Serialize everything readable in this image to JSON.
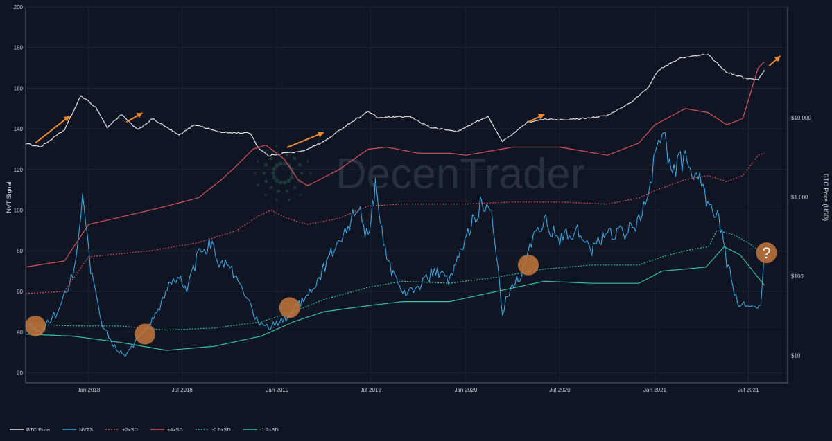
{
  "chart_data": {
    "type": "line",
    "watermark": "DecenTrader",
    "xlabels": [
      "Jan 2018",
      "Jul 2018",
      "Jan 2019",
      "Jul 2019",
      "Jan 2020",
      "Jul 2020",
      "Jan 2021",
      "Jul 2021"
    ],
    "y_left": {
      "title": "NVT Signal",
      "ticks": [
        "20",
        "40",
        "60",
        "80",
        "100",
        "120",
        "140",
        "160",
        "180",
        "200"
      ],
      "ylim": [
        15,
        200
      ]
    },
    "y_right": {
      "title": "BTC Price (USD)",
      "scale": "log",
      "ticks": [
        "$10",
        "$100",
        "$1,000",
        "$10,000"
      ]
    },
    "x_range": [
      "2017-09-01",
      "2021-09-15"
    ],
    "legend": {
      "position": "bottom-left",
      "items": [
        {
          "name": "BTC Price",
          "color": "#e6e6e6",
          "dash": "solid"
        },
        {
          "name": "NVTS",
          "color": "#3aa6e0",
          "dash": "solid"
        },
        {
          "name": "+2xSD",
          "color": "#d9525e",
          "dash": "dotted"
        },
        {
          "name": "+4xSD",
          "color": "#d9525e",
          "dash": "solid"
        },
        {
          "name": "-0.5xSD",
          "color": "#35c2a8",
          "dash": "dotted"
        },
        {
          "name": "-1.2xSD",
          "color": "#35c2a8",
          "dash": "solid"
        }
      ]
    },
    "series": [
      {
        "name": "BTC Price",
        "axis": "right",
        "x": [
          "2017-09-01",
          "2017-10-01",
          "2017-11-15",
          "2017-12-17",
          "2018-01-15",
          "2018-02-06",
          "2018-03-05",
          "2018-04-06",
          "2018-05-05",
          "2018-06-25",
          "2018-07-25",
          "2018-09-15",
          "2018-11-10",
          "2018-11-25",
          "2018-12-15",
          "2019-01-15",
          "2019-02-15",
          "2019-04-02",
          "2019-05-15",
          "2019-06-26",
          "2019-07-15",
          "2019-09-15",
          "2019-10-25",
          "2019-12-17",
          "2020-01-15",
          "2020-02-13",
          "2020-03-12",
          "2020-04-30",
          "2020-06-01",
          "2020-07-25",
          "2020-10-01",
          "2020-11-15",
          "2020-12-17",
          "2021-01-08",
          "2021-02-21",
          "2021-04-14",
          "2021-05-19",
          "2021-06-22",
          "2021-07-20",
          "2021-08-01"
        ],
        "y": [
          4700,
          4300,
          7000,
          19000,
          13500,
          7500,
          11000,
          7000,
          9700,
          6000,
          8200,
          6500,
          6400,
          4200,
          3300,
          3600,
          3700,
          5000,
          8000,
          12000,
          10000,
          10300,
          7500,
          6700,
          8500,
          10300,
          5000,
          8800,
          9500,
          9500,
          10600,
          15500,
          23000,
          40000,
          57000,
          63000,
          38000,
          32000,
          30000,
          40000
        ]
      },
      {
        "name": "NVTS",
        "axis": "left",
        "x": [
          "2017-09-01",
          "2017-10-01",
          "2017-11-01",
          "2017-11-25",
          "2017-12-10",
          "2017-12-20",
          "2018-01-05",
          "2018-01-25",
          "2018-02-15",
          "2018-03-10",
          "2018-04-10",
          "2018-04-25",
          "2018-05-10",
          "2018-06-05",
          "2018-06-25",
          "2018-07-10",
          "2018-08-01",
          "2018-08-25",
          "2018-09-10",
          "2018-10-05",
          "2018-11-05",
          "2018-11-25",
          "2018-12-15",
          "2019-01-15",
          "2019-02-15",
          "2019-03-20",
          "2019-04-15",
          "2019-05-15",
          "2019-06-05",
          "2019-06-26",
          "2019-07-10",
          "2019-08-01",
          "2019-09-01",
          "2019-10-01",
          "2019-11-01",
          "2019-12-01",
          "2020-01-05",
          "2020-02-01",
          "2020-02-20",
          "2020-03-12",
          "2020-03-25",
          "2020-04-20",
          "2020-05-10",
          "2020-06-01",
          "2020-07-01",
          "2020-08-01",
          "2020-09-01",
          "2020-10-01",
          "2020-11-01",
          "2020-12-01",
          "2020-12-20",
          "2021-01-05",
          "2021-01-15",
          "2021-02-01",
          "2021-03-01",
          "2021-04-01",
          "2021-04-20",
          "2021-05-05",
          "2021-05-20",
          "2021-06-10",
          "2021-07-05",
          "2021-07-25",
          "2021-08-01"
        ],
        "y": [
          44,
          40,
          50,
          62,
          80,
          105,
          70,
          45,
          35,
          28,
          38,
          42,
          48,
          62,
          68,
          60,
          78,
          84,
          75,
          70,
          55,
          45,
          42,
          46,
          55,
          65,
          78,
          90,
          103,
          85,
          112,
          75,
          60,
          62,
          70,
          65,
          88,
          105,
          100,
          50,
          60,
          70,
          85,
          95,
          85,
          90,
          80,
          90,
          88,
          95,
          110,
          130,
          140,
          120,
          125,
          112,
          100,
          95,
          75,
          55,
          52,
          55,
          80
        ]
      },
      {
        "name": "+4xSD",
        "axis": "left",
        "x": [
          "2017-09-01",
          "2017-11-15",
          "2018-01-01",
          "2018-05-01",
          "2018-08-01",
          "2018-09-15",
          "2018-10-15",
          "2018-11-15",
          "2018-12-10",
          "2019-01-15",
          "2019-02-10",
          "2019-03-01",
          "2019-05-01",
          "2019-06-26",
          "2019-08-01",
          "2019-10-01",
          "2019-12-01",
          "2020-01-01",
          "2020-04-01",
          "2020-07-01",
          "2020-10-01",
          "2020-12-01",
          "2021-01-01",
          "2021-03-01",
          "2021-04-14",
          "2021-05-20",
          "2021-06-20",
          "2021-07-20",
          "2021-08-01"
        ],
        "y": [
          72,
          75,
          93,
          100,
          106,
          115,
          122,
          130,
          132,
          125,
          115,
          112,
          120,
          130,
          131,
          128,
          128,
          127,
          131,
          131,
          127,
          133,
          142,
          150,
          148,
          142,
          145,
          170,
          173
        ]
      },
      {
        "name": "+2xSD",
        "axis": "left",
        "x": [
          "2017-09-01",
          "2017-11-15",
          "2018-01-01",
          "2018-05-01",
          "2018-08-01",
          "2018-10-15",
          "2018-11-25",
          "2018-12-20",
          "2019-01-20",
          "2019-03-01",
          "2019-05-01",
          "2019-06-26",
          "2019-09-01",
          "2019-12-01",
          "2020-01-01",
          "2020-04-01",
          "2020-07-01",
          "2020-10-01",
          "2020-12-01",
          "2021-01-05",
          "2021-03-01",
          "2021-04-14",
          "2021-05-20",
          "2021-06-20",
          "2021-07-20",
          "2021-08-01"
        ],
        "y": [
          59,
          60,
          77,
          80,
          84,
          90,
          97,
          100,
          96,
          93,
          96,
          102,
          103,
          103,
          103,
          104,
          104,
          103,
          106,
          110,
          115,
          117,
          114,
          117,
          127,
          128
        ]
      },
      {
        "name": "-0.5xSD",
        "axis": "left",
        "x": [
          "2017-09-01",
          "2017-12-01",
          "2018-03-01",
          "2018-06-01",
          "2018-09-01",
          "2018-12-01",
          "2019-02-01",
          "2019-04-01",
          "2019-06-26",
          "2019-09-01",
          "2019-12-01",
          "2020-03-01",
          "2020-06-01",
          "2020-09-01",
          "2020-12-01",
          "2021-01-15",
          "2021-03-01",
          "2021-04-15",
          "2021-05-01",
          "2021-06-01",
          "2021-07-01",
          "2021-08-01"
        ],
        "y": [
          44,
          43,
          43,
          41,
          42,
          45,
          50,
          56,
          62,
          65,
          64,
          67,
          71,
          73,
          73,
          77,
          80,
          82,
          90,
          88,
          84,
          78
        ]
      },
      {
        "name": "-1.2xSD",
        "axis": "left",
        "x": [
          "2017-09-01",
          "2017-12-01",
          "2018-03-01",
          "2018-06-01",
          "2018-09-01",
          "2018-12-01",
          "2019-02-01",
          "2019-04-01",
          "2019-06-26",
          "2019-09-01",
          "2019-12-01",
          "2020-03-01",
          "2020-06-01",
          "2020-09-01",
          "2020-12-01",
          "2021-01-15",
          "2021-03-01",
          "2021-04-10",
          "2021-05-15",
          "2021-06-15",
          "2021-07-10",
          "2021-08-01"
        ],
        "y": [
          39,
          38,
          35,
          31,
          33,
          38,
          45,
          50,
          53,
          55,
          55,
          60,
          65,
          64,
          64,
          70,
          71,
          72,
          82,
          78,
          70,
          63
        ]
      }
    ],
    "circles": [
      {
        "x": "2017-09-20",
        "y": 43,
        "label": ""
      },
      {
        "x": "2018-04-20",
        "y": 39,
        "label": ""
      },
      {
        "x": "2019-01-25",
        "y": 52,
        "label": ""
      },
      {
        "x": "2020-05-01",
        "y": 73,
        "label": ""
      },
      {
        "x": "2021-08-05",
        "y": 79,
        "label": "?"
      }
    ],
    "arrows": [
      {
        "x1": "2017-09-20",
        "p1": 4800,
        "x2": "2017-11-25",
        "p2": 10500
      },
      {
        "x1": "2018-03-15",
        "p1": 8800,
        "x2": "2018-04-15",
        "p2": 11500
      },
      {
        "x1": "2019-01-20",
        "p1": 4200,
        "x2": "2019-04-01",
        "p2": 6500
      },
      {
        "x1": "2020-05-01",
        "p1": 8800,
        "x2": "2020-06-01",
        "p2": 11000
      },
      {
        "x1": "2021-08-10",
        "p1": 45000,
        "x2": "2021-09-01",
        "p2": 60000
      }
    ]
  }
}
